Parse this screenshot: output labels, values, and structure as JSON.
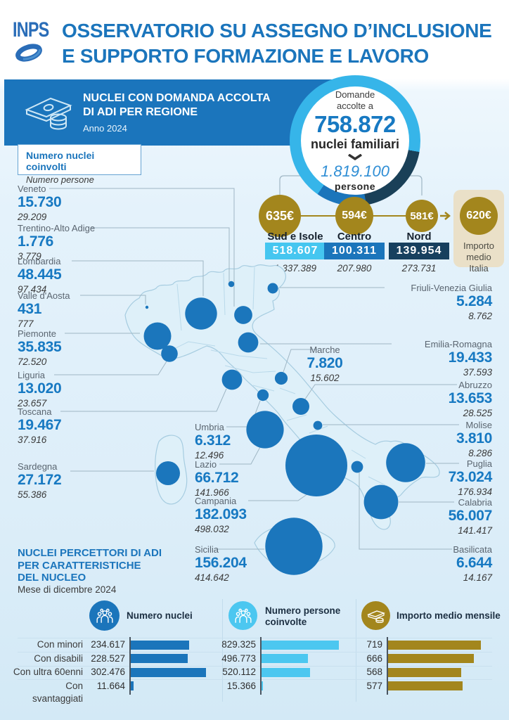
{
  "header": {
    "logo": "INPS",
    "title_line1": "OSSERVATORIO SU ASSEGNO D’INCLUSIONE",
    "title_line2": "E SUPPORTO FORMAZIONE E LAVORO"
  },
  "banner": {
    "title_line1": "NUCLEI CON DOMANDA ACCOLTA",
    "title_line2": "DI ADI PER REGIONE",
    "subtitle": "Anno 2024"
  },
  "donut": {
    "label_line1": "Domande",
    "label_line2": "accolte a",
    "nuclei": 758872,
    "nuclei_label": "758.872",
    "nuclei_caption": "nuclei familiari",
    "persone": 1819100,
    "persone_label": "1.819.100",
    "persone_caption": "persone"
  },
  "legend_box": {
    "line1": "Numero nuclei coinvolti",
    "line2": "Numero persone"
  },
  "italy_average": {
    "importo_label": "620€",
    "importo_medio_eur": 620,
    "label": "Importo medio Italia"
  },
  "colors": {
    "blue": "#1b75bc",
    "value_blue": "#1779c2",
    "cyan": "#45c6f0",
    "navy": "#17405e",
    "gold": "#a3861d",
    "beige": "#eae0c8",
    "land": "#def0f9"
  },
  "chart_data": [
    {
      "type": "map-bubbles",
      "title": "NUCLEI CON DOMANDA ACCOLTA DI ADI PER REGIONE",
      "subtitle": "Anno 2024",
      "note": "bubble area ~ numero nuclei; first value = nuclei (blue), second = persone (italic)",
      "totals": {
        "nuclei": 758872,
        "persone": 1819100
      },
      "macro_areas": [
        {
          "name": "Sud e Isole",
          "importo_label": "635€",
          "importo_medio_eur": 635,
          "nuclei": 518607,
          "nuclei_label": "518.607",
          "persone": 1337389,
          "persone_label": "1.337.389",
          "badge_color": "#45c6f0"
        },
        {
          "name": "Centro",
          "importo_label": "594€",
          "importo_medio_eur": 594,
          "nuclei": 100311,
          "nuclei_label": "100.311",
          "persone": 207980,
          "persone_label": "207.980",
          "badge_color": "#1b75bb"
        },
        {
          "name": "Nord",
          "importo_label": "581€",
          "importo_medio_eur": 581,
          "nuclei": 139954,
          "nuclei_label": "139.954",
          "persone": 273731,
          "persone_label": "273.731",
          "badge_color": "#17405e"
        }
      ],
      "regions": [
        {
          "name": "Veneto",
          "nuclei": 15730,
          "nuclei_label": "15.730",
          "persone": 29209,
          "persone_label": "29.209"
        },
        {
          "name": "Trentino-Alto Adige",
          "nuclei": 1776,
          "nuclei_label": "1.776",
          "persone": 3779,
          "persone_label": "3.779"
        },
        {
          "name": "Lombardia",
          "nuclei": 48445,
          "nuclei_label": "48.445",
          "persone": 97434,
          "persone_label": "97.434"
        },
        {
          "name": "Valle d'Aosta",
          "nuclei": 431,
          "nuclei_label": "431",
          "persone": 777,
          "persone_label": "777"
        },
        {
          "name": "Piemonte",
          "nuclei": 35835,
          "nuclei_label": "35.835",
          "persone": 72520,
          "persone_label": "72.520"
        },
        {
          "name": "Liguria",
          "nuclei": 13020,
          "nuclei_label": "13.020",
          "persone": 23657,
          "persone_label": "23.657"
        },
        {
          "name": "Toscana",
          "nuclei": 19467,
          "nuclei_label": "19.467",
          "persone": 37916,
          "persone_label": "37.916"
        },
        {
          "name": "Sardegna",
          "nuclei": 27172,
          "nuclei_label": "27.172",
          "persone": 55386,
          "persone_label": "55.386"
        },
        {
          "name": "Umbria",
          "nuclei": 6312,
          "nuclei_label": "6.312",
          "persone": 12496,
          "persone_label": "12.496"
        },
        {
          "name": "Lazio",
          "nuclei": 66712,
          "nuclei_label": "66.712",
          "persone": 141966,
          "persone_label": "141.966"
        },
        {
          "name": "Campania",
          "nuclei": 182093,
          "nuclei_label": "182.093",
          "persone": 498032,
          "persone_label": "498.032"
        },
        {
          "name": "Sicilia",
          "nuclei": 156204,
          "nuclei_label": "156.204",
          "persone": 414642,
          "persone_label": "414.642"
        },
        {
          "name": "Friuli-Venezia Giulia",
          "nuclei": 5284,
          "nuclei_label": "5.284",
          "persone": 8762,
          "persone_label": "8.762"
        },
        {
          "name": "Emilia-Romagna",
          "nuclei": 19433,
          "nuclei_label": "19.433",
          "persone": 37593,
          "persone_label": "37.593"
        },
        {
          "name": "Marche",
          "nuclei": 7820,
          "nuclei_label": "7.820",
          "persone": 15602,
          "persone_label": "15.602"
        },
        {
          "name": "Abruzzo",
          "nuclei": 13653,
          "nuclei_label": "13.653",
          "persone": 28525,
          "persone_label": "28.525"
        },
        {
          "name": "Molise",
          "nuclei": 3810,
          "nuclei_label": "3.810",
          "persone": 8286,
          "persone_label": "8.286"
        },
        {
          "name": "Puglia",
          "nuclei": 73024,
          "nuclei_label": "73.024",
          "persone": 176934,
          "persone_label": "176.934"
        },
        {
          "name": "Calabria",
          "nuclei": 56007,
          "nuclei_label": "56.007",
          "persone": 141417,
          "persone_label": "141.417"
        },
        {
          "name": "Basilicata",
          "nuclei": 6644,
          "nuclei_label": "6.644",
          "persone": 14167,
          "persone_label": "14.167"
        }
      ]
    },
    {
      "type": "bar",
      "title": "NUCLEI PERCETTORI DI ADI PER CARATTERISTICHE DEL NUCLEO",
      "subtitle": "Mese di dicembre 2024",
      "title_lines": [
        "NUCLEI PERCETTORI DI ADI",
        "PER CARATTERISTICHE",
        "DEL NUCLEO"
      ],
      "categories": [
        "Con minori",
        "Con disabili",
        "Con ultra 60enni",
        "Con svantaggiati"
      ],
      "legend_position": "top",
      "grid": "row-separators",
      "series": [
        {
          "name": "Numero nuclei",
          "color": "#1b75bb",
          "values": [
            234617,
            228527,
            302476,
            11664
          ],
          "labels": [
            "234.617",
            "228.527",
            "302.476",
            "11.664"
          ]
        },
        {
          "name": "Numero persone coinvolte",
          "name_line1": "Numero persone",
          "name_line2": "coinvolte",
          "color": "#4cc7f0",
          "values": [
            829325,
            496773,
            520112,
            15366
          ],
          "labels": [
            "829.325",
            "496.773",
            "520.112",
            "15.366"
          ]
        },
        {
          "name": "Importo medio mensile",
          "color": "#a3861d",
          "values": [
            719,
            666,
            568,
            577
          ],
          "labels": [
            "719",
            "666",
            "568",
            "577"
          ]
        }
      ]
    }
  ]
}
